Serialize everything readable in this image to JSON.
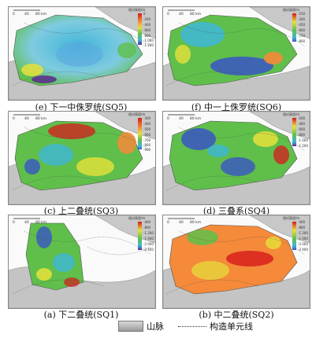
{
  "panels": [
    {
      "id": "e",
      "caption": "(e) 下一中侏罗统(SQ5)",
      "legend_title": "相对高程/m",
      "ticks": [
        "0",
        "-200",
        "-400",
        "-600",
        "-800",
        "-1 000",
        "-1 200"
      ]
    },
    {
      "id": "f",
      "caption": "(f) 中一上侏罗统(SQ6)",
      "legend_title": "相对高程/m",
      "ticks": [
        "-150",
        "-300",
        "-450",
        "-600",
        "-750",
        "-900"
      ]
    },
    {
      "id": "c",
      "caption": "(c) 上二叠统(SQ3)",
      "legend_title": "相对高程/m",
      "ticks": [
        "-300",
        "-400",
        "-500",
        "-600",
        "-700",
        "-800",
        "-900"
      ]
    },
    {
      "id": "d",
      "caption": "(d) 三叠系(SQ4)",
      "legend_title": "相对高程/m",
      "ticks": [
        "-200",
        "-400",
        "-600",
        "-800",
        "-1 000",
        "-1 200"
      ]
    },
    {
      "id": "a",
      "caption": "(a) 下二叠统(SQ1)",
      "legend_title": "相对高程/m",
      "ticks": [
        "-400",
        "-800",
        "-1 200",
        "-1 600",
        "-2 000",
        "-2 400"
      ]
    },
    {
      "id": "b",
      "caption": "(b) 中二叠统(SQ2)",
      "legend_title": "相对高程/m",
      "ticks": [
        "-400",
        "-800",
        "-1 200",
        "-1 600",
        "-2 000",
        "-2 400"
      ]
    }
  ],
  "scale_labels": [
    "0",
    "40",
    "80 km"
  ],
  "legend": {
    "mountain_label": "山脉",
    "boundary_label": "构造单元线"
  },
  "colors": {
    "red": "#d7191c",
    "orange": "#f48a3a",
    "yellow": "#e6e13a",
    "green": "#5fbf4a",
    "cyan": "#3fb6d8",
    "blue": "#3a55c4",
    "purple": "#5b2a8c",
    "mountain": "#b0b0b0"
  }
}
